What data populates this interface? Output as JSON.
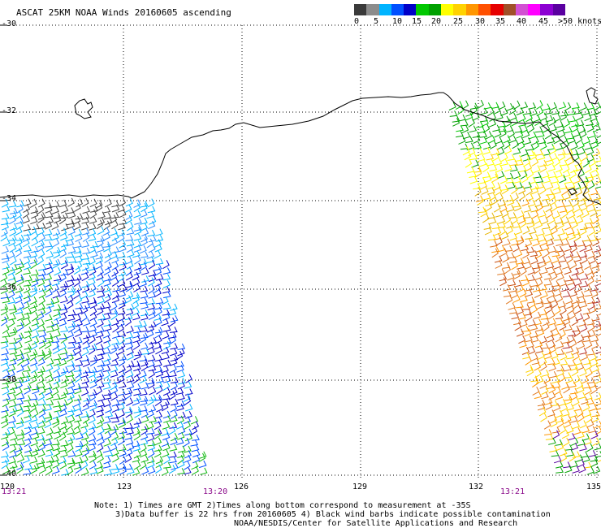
{
  "title": "ASCAT 25KM NOAA Winds 20160605 ascending",
  "legend": {
    "labels": [
      "0",
      "5",
      "10",
      "15",
      "20",
      "25",
      "30",
      "35",
      "40",
      "45",
      ">50 knots"
    ],
    "colors": [
      "#3a3a3a",
      "#8c8c8c",
      "#00b4ff",
      "#0050ff",
      "#0000c8",
      "#00c800",
      "#00a000",
      "#ffff00",
      "#ffd200",
      "#ff9600",
      "#ff5000",
      "#e60000",
      "#a05028",
      "#d250d2",
      "#ff00ff",
      "#8c00d2",
      "#5a00a0"
    ]
  },
  "map": {
    "lat_labels": [
      "-30",
      "-32",
      "-34",
      "-36",
      "-38",
      "-40"
    ],
    "lon_labels": [
      "120",
      "123",
      "126",
      "129",
      "132",
      "135"
    ],
    "time_labels": [
      "13:21",
      "13:20",
      "13:21"
    ]
  },
  "notes": [
    "Note: 1) Times are GMT 2)Times along bottom correspond to measurement at -35S",
    "3)Data buffer is 22 hrs from 20160605 4) Black wind barbs indicate possible contamination",
    "NOAA/NESDIS/Center for Satellite Applications and Research"
  ]
}
